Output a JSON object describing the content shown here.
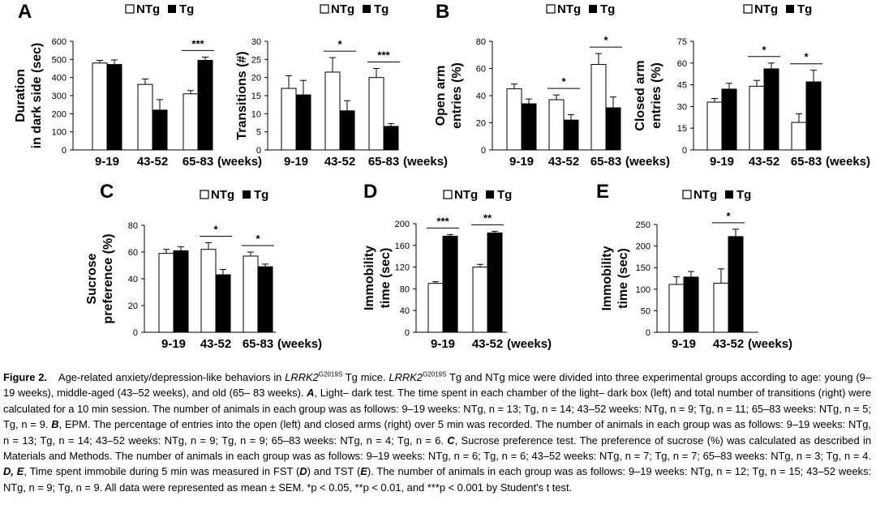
{
  "legend": {
    "ntg": "NTg",
    "tg": "Tg"
  },
  "chart_data": [
    {
      "id": "A1",
      "type": "bar",
      "panel_label": "A",
      "ylabel_lines": [
        "Duration",
        "in dark side (sec)"
      ],
      "categories": [
        "9-19",
        "43-52",
        "65-83"
      ],
      "xunit": "(weeks)",
      "ylim": [
        0,
        600
      ],
      "yticks": [
        0,
        100,
        200,
        300,
        400,
        500,
        600
      ],
      "series": [
        {
          "name": "NTg",
          "values": [
            480,
            362,
            310
          ],
          "errors": [
            15,
            30,
            18
          ]
        },
        {
          "name": "Tg",
          "values": [
            472,
            220,
            495
          ],
          "errors": [
            25,
            58,
            18
          ]
        }
      ],
      "sig": [
        {
          "category": 2,
          "label": "***"
        }
      ]
    },
    {
      "id": "A2",
      "type": "bar",
      "panel_label": "",
      "ylabel_lines": [
        "Transitions (#)"
      ],
      "categories": [
        "9-19",
        "43-52",
        "65-83"
      ],
      "xunit": "(weeks)",
      "ylim": [
        0,
        30
      ],
      "yticks": [
        0,
        5,
        10,
        15,
        20,
        25,
        30
      ],
      "series": [
        {
          "name": "NTg",
          "values": [
            17,
            21.5,
            20
          ],
          "errors": [
            3.5,
            4,
            2.5
          ]
        },
        {
          "name": "Tg",
          "values": [
            15.2,
            10.8,
            6.5
          ],
          "errors": [
            4,
            2.8,
            0.8
          ]
        }
      ],
      "sig": [
        {
          "category": 1,
          "label": "*"
        },
        {
          "category": 2,
          "label": "***"
        }
      ]
    },
    {
      "id": "B1",
      "type": "bar",
      "panel_label": "B",
      "ylabel_lines": [
        "Open arm",
        "entries (%)"
      ],
      "categories": [
        "9-19",
        "43-52",
        "65-83"
      ],
      "xunit": "(weeks)",
      "ylim": [
        0,
        80
      ],
      "yticks": [
        0,
        20,
        40,
        60,
        80
      ],
      "series": [
        {
          "name": "NTg",
          "values": [
            45,
            37,
            63
          ],
          "errors": [
            3.5,
            3.5,
            8
          ]
        },
        {
          "name": "Tg",
          "values": [
            34,
            22,
            31
          ],
          "errors": [
            3.5,
            4,
            8
          ]
        }
      ],
      "sig": [
        {
          "category": 1,
          "label": "*"
        },
        {
          "category": 2,
          "label": "*"
        }
      ]
    },
    {
      "id": "B2",
      "type": "bar",
      "panel_label": "",
      "ylabel_lines": [
        "Closed arm",
        "entries (%)"
      ],
      "categories": [
        "9-19",
        "43-52",
        "65-83"
      ],
      "xunit": "(weeks)",
      "ylim": [
        0,
        75
      ],
      "yticks": [
        0,
        15,
        30,
        45,
        60,
        75
      ],
      "series": [
        {
          "name": "NTg",
          "values": [
            33,
            44,
            19
          ],
          "errors": [
            2.5,
            4,
            6
          ]
        },
        {
          "name": "Tg",
          "values": [
            42,
            56,
            47
          ],
          "errors": [
            4,
            4,
            8
          ]
        }
      ],
      "sig": [
        {
          "category": 1,
          "label": "*"
        },
        {
          "category": 2,
          "label": "*"
        }
      ]
    },
    {
      "id": "C",
      "type": "bar",
      "panel_label": "C",
      "ylabel_lines": [
        "Sucrose",
        "preference (%)"
      ],
      "categories": [
        "9-19",
        "43-52",
        "65-83"
      ],
      "xunit": "(weeks)",
      "ylim": [
        0,
        80
      ],
      "yticks": [
        0,
        20,
        40,
        60,
        80
      ],
      "series": [
        {
          "name": "NTg",
          "values": [
            59,
            62,
            57
          ],
          "errors": [
            3,
            5,
            3
          ]
        },
        {
          "name": "Tg",
          "values": [
            61,
            43,
            49
          ],
          "errors": [
            3,
            4,
            2
          ]
        }
      ],
      "sig": [
        {
          "category": 1,
          "label": "*"
        },
        {
          "category": 2,
          "label": "*"
        }
      ]
    },
    {
      "id": "D",
      "type": "bar",
      "panel_label": "D",
      "ylabel_lines": [
        "Immobility",
        "time  (sec)"
      ],
      "categories": [
        "9-19",
        "43-52"
      ],
      "xunit": "(weeks)",
      "ylim": [
        0,
        200
      ],
      "yticks": [
        0,
        40,
        80,
        120,
        160,
        200
      ],
      "series": [
        {
          "name": "NTg",
          "values": [
            90,
            120
          ],
          "errors": [
            3,
            5
          ]
        },
        {
          "name": "Tg",
          "values": [
            177,
            183
          ],
          "errors": [
            3,
            3
          ]
        }
      ],
      "sig": [
        {
          "category": 0,
          "label": "***"
        },
        {
          "category": 1,
          "label": "**"
        }
      ]
    },
    {
      "id": "E",
      "type": "bar",
      "panel_label": "E",
      "ylabel_lines": [
        "Immobility",
        "time  (sec)"
      ],
      "categories": [
        "9-19",
        "43-52"
      ],
      "xunit": "(weeks)",
      "ylim": [
        0,
        250
      ],
      "yticks": [
        0,
        50,
        100,
        150,
        200,
        250
      ],
      "series": [
        {
          "name": "NTg",
          "values": [
            111,
            114
          ],
          "errors": [
            18,
            33
          ]
        },
        {
          "name": "Tg",
          "values": [
            128,
            222
          ],
          "errors": [
            13,
            17
          ]
        }
      ],
      "sig": [
        {
          "category": 1,
          "label": "*"
        }
      ]
    }
  ],
  "caption": {
    "label": "Figure 2.",
    "t1": "Age-related anxiety/depression-like behaviors in ",
    "gene1": "LRRK2",
    "sup1": "G2019S",
    "t2": " Tg mice. ",
    "gene2": "LRRK2",
    "sup2": "G2019S",
    "t3": " Tg and NTg mice were divided into three experimental groups according to age: young (9–19 weeks), middle-aged (43–52 weeks), and old (65– 83 weeks). ",
    "bA": "A",
    "t4": ", Light– dark test. The time spent in each chamber of the light– dark box (left) and total number of transitions (right) were calculated for a 10 min session. The number of animals in each group was as follows: 9–19 weeks: NTg, n = 13; Tg, n = 14; 43–52 weeks: NTg, n = 9; Tg, n = 11; 65–83 weeks: NTg, n = 5; Tg, n = 9. ",
    "bB": "B",
    "t5": ", EPM. The percentage of entries into the open (left) and closed arms (right) over 5 min was recorded. The number of animals in each group was as follows: 9–19 weeks: NTg, n = 13; Tg, n = 14; 43–52 weeks: NTg, n = 9; Tg, n = 9; 65–83 weeks: NTg, n = 4; Tg, n = 6. ",
    "bC": "C",
    "t6": ", Sucrose preference test. The preference of sucrose (%) was calculated as described in Materials and Methods. The number of animals in each group was as follows: 9–19 weeks: NTg, n = 6; Tg, n = 6; 43–52 weeks: NTg, n = 7; Tg, n = 7; 65–83 weeks: NTg, n = 3; Tg, n = 4. ",
    "bDE": "D, E",
    "t7": ", Time spent immobile during 5 min was measured in FST (",
    "bD": "D",
    "t8": ") and TST (",
    "bE": "E",
    "t9": "). The number of animals in each group was as follows: 9–19 weeks: NTg, n = 12; Tg, n = 15; 43–52 weeks: NTg, n = 9; Tg, n = 9. All data were represented as mean ± SEM. *p < 0.05, **p < 0.01, and ***p < 0.001 by Student's t test."
  }
}
